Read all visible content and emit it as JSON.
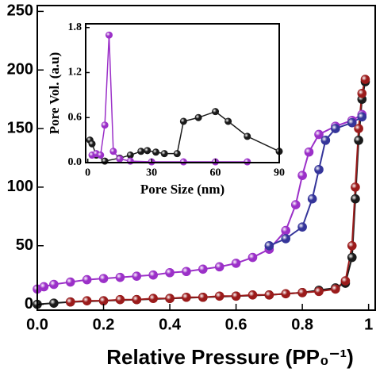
{
  "chart_data": [
    {
      "type": "line",
      "x_label": "Relative Pressure (PP₀⁻¹)",
      "xlim": [
        0,
        1.02
      ],
      "xticks": [
        {
          "value": 0,
          "label": "0.0"
        },
        0.2,
        0.4,
        0.6,
        0.8,
        1
      ],
      "ylim": [
        -5,
        255
      ],
      "yticks": [
        0,
        50,
        100,
        150,
        200,
        250
      ],
      "series": [
        {
          "color": "#9b30c8",
          "x": [
            0.0,
            0.02,
            0.05,
            0.1,
            0.15,
            0.2,
            0.25,
            0.3,
            0.35,
            0.4,
            0.45,
            0.5,
            0.55,
            0.6,
            0.65,
            0.7,
            0.75,
            0.78,
            0.8,
            0.82,
            0.85,
            0.9,
            0.95,
            0.98
          ],
          "values": [
            13,
            15,
            17,
            19,
            21,
            22,
            23,
            24,
            25,
            27,
            28,
            30,
            32,
            35,
            40,
            47,
            63,
            85,
            110,
            130,
            145,
            152,
            157,
            162
          ]
        },
        {
          "color": "#35359a",
          "x": [
            0.7,
            0.75,
            0.8,
            0.83,
            0.85,
            0.87,
            0.9,
            0.95,
            0.98
          ],
          "values": [
            50,
            56,
            66,
            90,
            115,
            140,
            150,
            155,
            160
          ]
        },
        {
          "color": "#1a1a1a",
          "x": [
            0.0,
            0.05,
            0.1,
            0.2,
            0.3,
            0.4,
            0.5,
            0.6,
            0.7,
            0.8,
            0.85,
            0.9,
            0.93,
            0.95,
            0.96,
            0.97,
            0.98,
            0.99
          ],
          "values": [
            0,
            1,
            2,
            3,
            4,
            5,
            6,
            7,
            8,
            10,
            12,
            14,
            18,
            40,
            90,
            140,
            175,
            190
          ]
        },
        {
          "color": "#9b1b1b",
          "x": [
            0.1,
            0.15,
            0.2,
            0.25,
            0.3,
            0.35,
            0.4,
            0.45,
            0.5,
            0.55,
            0.6,
            0.65,
            0.7,
            0.75,
            0.8,
            0.85,
            0.9,
            0.93,
            0.95,
            0.96,
            0.97,
            0.98,
            0.99
          ],
          "values": [
            2,
            3,
            3,
            4,
            4,
            5,
            5,
            6,
            6,
            7,
            7,
            8,
            8,
            9,
            10,
            11,
            13,
            20,
            50,
            100,
            150,
            180,
            192
          ]
        }
      ]
    },
    {
      "type": "line",
      "x_label": "Pore Size (nm)",
      "y_label": "Pore Vol. (a.u)",
      "xlim": [
        -1,
        90
      ],
      "xticks": [
        0,
        30,
        60,
        90
      ],
      "ylim": [
        0,
        1.85
      ],
      "yticks": [
        {
          "value": 0,
          "label": "0.0"
        },
        0.6,
        1.2,
        1.8
      ],
      "series": [
        {
          "color": "#1a1a1a",
          "x": [
            1,
            2,
            4,
            8,
            15,
            20,
            25,
            28,
            32,
            36,
            42,
            45,
            52,
            60,
            66,
            75,
            90
          ],
          "values": [
            0.3,
            0.25,
            0.1,
            0.02,
            0.06,
            0.1,
            0.15,
            0.16,
            0.14,
            0.12,
            0.12,
            0.55,
            0.6,
            0.68,
            0.55,
            0.35,
            0.15
          ]
        },
        {
          "color": "#9b30c8",
          "x": [
            2,
            4,
            6,
            8,
            10,
            12,
            15,
            20,
            30,
            45,
            60,
            75
          ],
          "values": [
            0.1,
            0.12,
            0.1,
            0.5,
            1.7,
            0.15,
            0.05,
            0.02,
            0.01,
            0.01,
            0.01,
            0.01
          ]
        }
      ]
    }
  ]
}
